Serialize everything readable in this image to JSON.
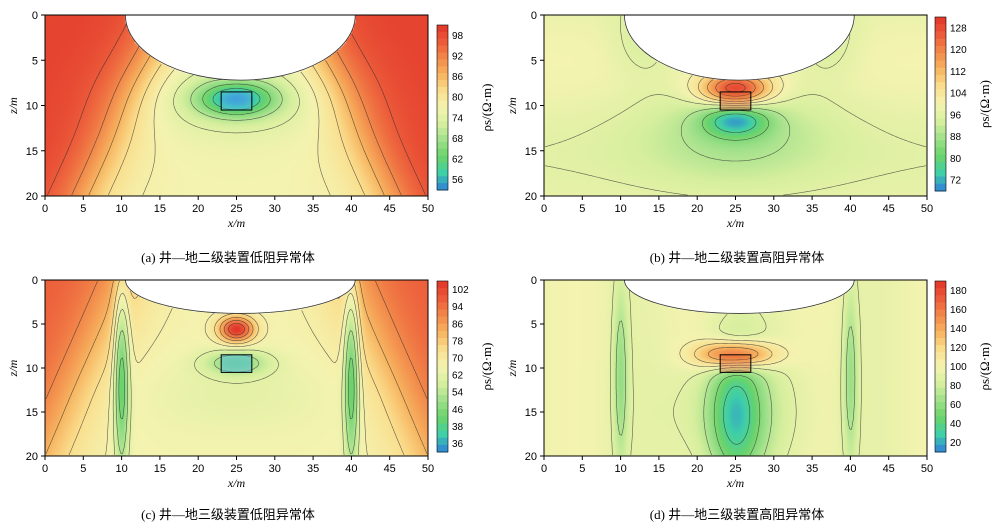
{
  "colormap": [
    "#2f7fd9",
    "#3ecfa9",
    "#6ad36a",
    "#9fe08a",
    "#d6ef9e",
    "#f4f3b0",
    "#fadf8e",
    "#f7b460",
    "#f2884a",
    "#ec5a3a",
    "#e03428"
  ],
  "chart_data": [
    {
      "id": "a",
      "type": "heatmap",
      "caption": "(a) 井—地二级装置低阻异常体",
      "xlabel": "x/m",
      "ylabel": "z/m",
      "colorbar_label": "ρs/(Ω·m)",
      "x_ticks": [
        "0",
        "5",
        "10",
        "15",
        "20",
        "25",
        "30",
        "35",
        "40",
        "45",
        "50"
      ],
      "y_ticks": [
        "0",
        "5",
        "10",
        "15",
        "20"
      ],
      "xlim": [
        0,
        50
      ],
      "ylim": [
        20,
        0
      ],
      "colorbar_ticks": [
        "98",
        "92",
        "86",
        "80",
        "74",
        "68",
        "62",
        "56"
      ],
      "anomaly": "low",
      "anomaly_box": {
        "x": [
          23,
          27
        ],
        "z": [
          8.5,
          10.5
        ]
      },
      "cavity": {
        "x": [
          10.5,
          40.5
        ],
        "depth": 7.2
      }
    },
    {
      "id": "b",
      "type": "heatmap",
      "caption": "(b) 井—地二级装置高阻异常体",
      "xlabel": "x/m",
      "ylabel": "z/m",
      "colorbar_label": "ρs/(Ω·m)",
      "x_ticks": [
        "0",
        "5",
        "10",
        "15",
        "20",
        "25",
        "30",
        "35",
        "40",
        "45",
        "50"
      ],
      "y_ticks": [
        "0",
        "5",
        "10",
        "15",
        "20"
      ],
      "xlim": [
        0,
        50
      ],
      "ylim": [
        20,
        0
      ],
      "colorbar_ticks": [
        "128",
        "120",
        "112",
        "104",
        "96",
        "88",
        "80",
        "72"
      ],
      "anomaly": "high",
      "anomaly_box": {
        "x": [
          23,
          27
        ],
        "z": [
          8.5,
          10.5
        ]
      },
      "cavity": {
        "x": [
          10.5,
          40.5
        ],
        "depth": 7.2
      }
    },
    {
      "id": "c",
      "type": "heatmap",
      "caption": "(c) 井—地三级装置低阻异常体",
      "xlabel": "x/m",
      "ylabel": "z/m",
      "colorbar_label": "ρs/(Ω·m)",
      "x_ticks": [
        "0",
        "5",
        "10",
        "15",
        "20",
        "25",
        "30",
        "35",
        "40",
        "45",
        "50"
      ],
      "y_ticks": [
        "0",
        "5",
        "10",
        "15",
        "20"
      ],
      "xlim": [
        0,
        50
      ],
      "ylim": [
        20,
        0
      ],
      "colorbar_ticks": [
        "102",
        "94",
        "86",
        "78",
        "70",
        "62",
        "54",
        "46",
        "38",
        "36"
      ],
      "anomaly": "low",
      "anomaly_box": {
        "x": [
          23,
          27
        ],
        "z": [
          8.5,
          10.5
        ]
      },
      "cavity": {
        "x": [
          10.5,
          40.5
        ],
        "depth": 3.8
      }
    },
    {
      "id": "d",
      "type": "heatmap",
      "caption": "(d) 井—地三级装置高阻异常体",
      "xlabel": "x/m",
      "ylabel": "z/m",
      "colorbar_label": "ρs/(Ω·m)",
      "x_ticks": [
        "0",
        "5",
        "10",
        "15",
        "20",
        "25",
        "30",
        "35",
        "40",
        "45",
        "50"
      ],
      "y_ticks": [
        "0",
        "5",
        "10",
        "15",
        "20"
      ],
      "xlim": [
        0,
        50
      ],
      "ylim": [
        20,
        0
      ],
      "colorbar_ticks": [
        "180",
        "160",
        "140",
        "120",
        "100",
        "80",
        "60",
        "40",
        "20"
      ],
      "anomaly": "high",
      "anomaly_box": {
        "x": [
          23,
          27
        ],
        "z": [
          8.5,
          10.5
        ]
      },
      "cavity": {
        "x": [
          10.5,
          40.5
        ],
        "depth": 3.8
      }
    }
  ]
}
